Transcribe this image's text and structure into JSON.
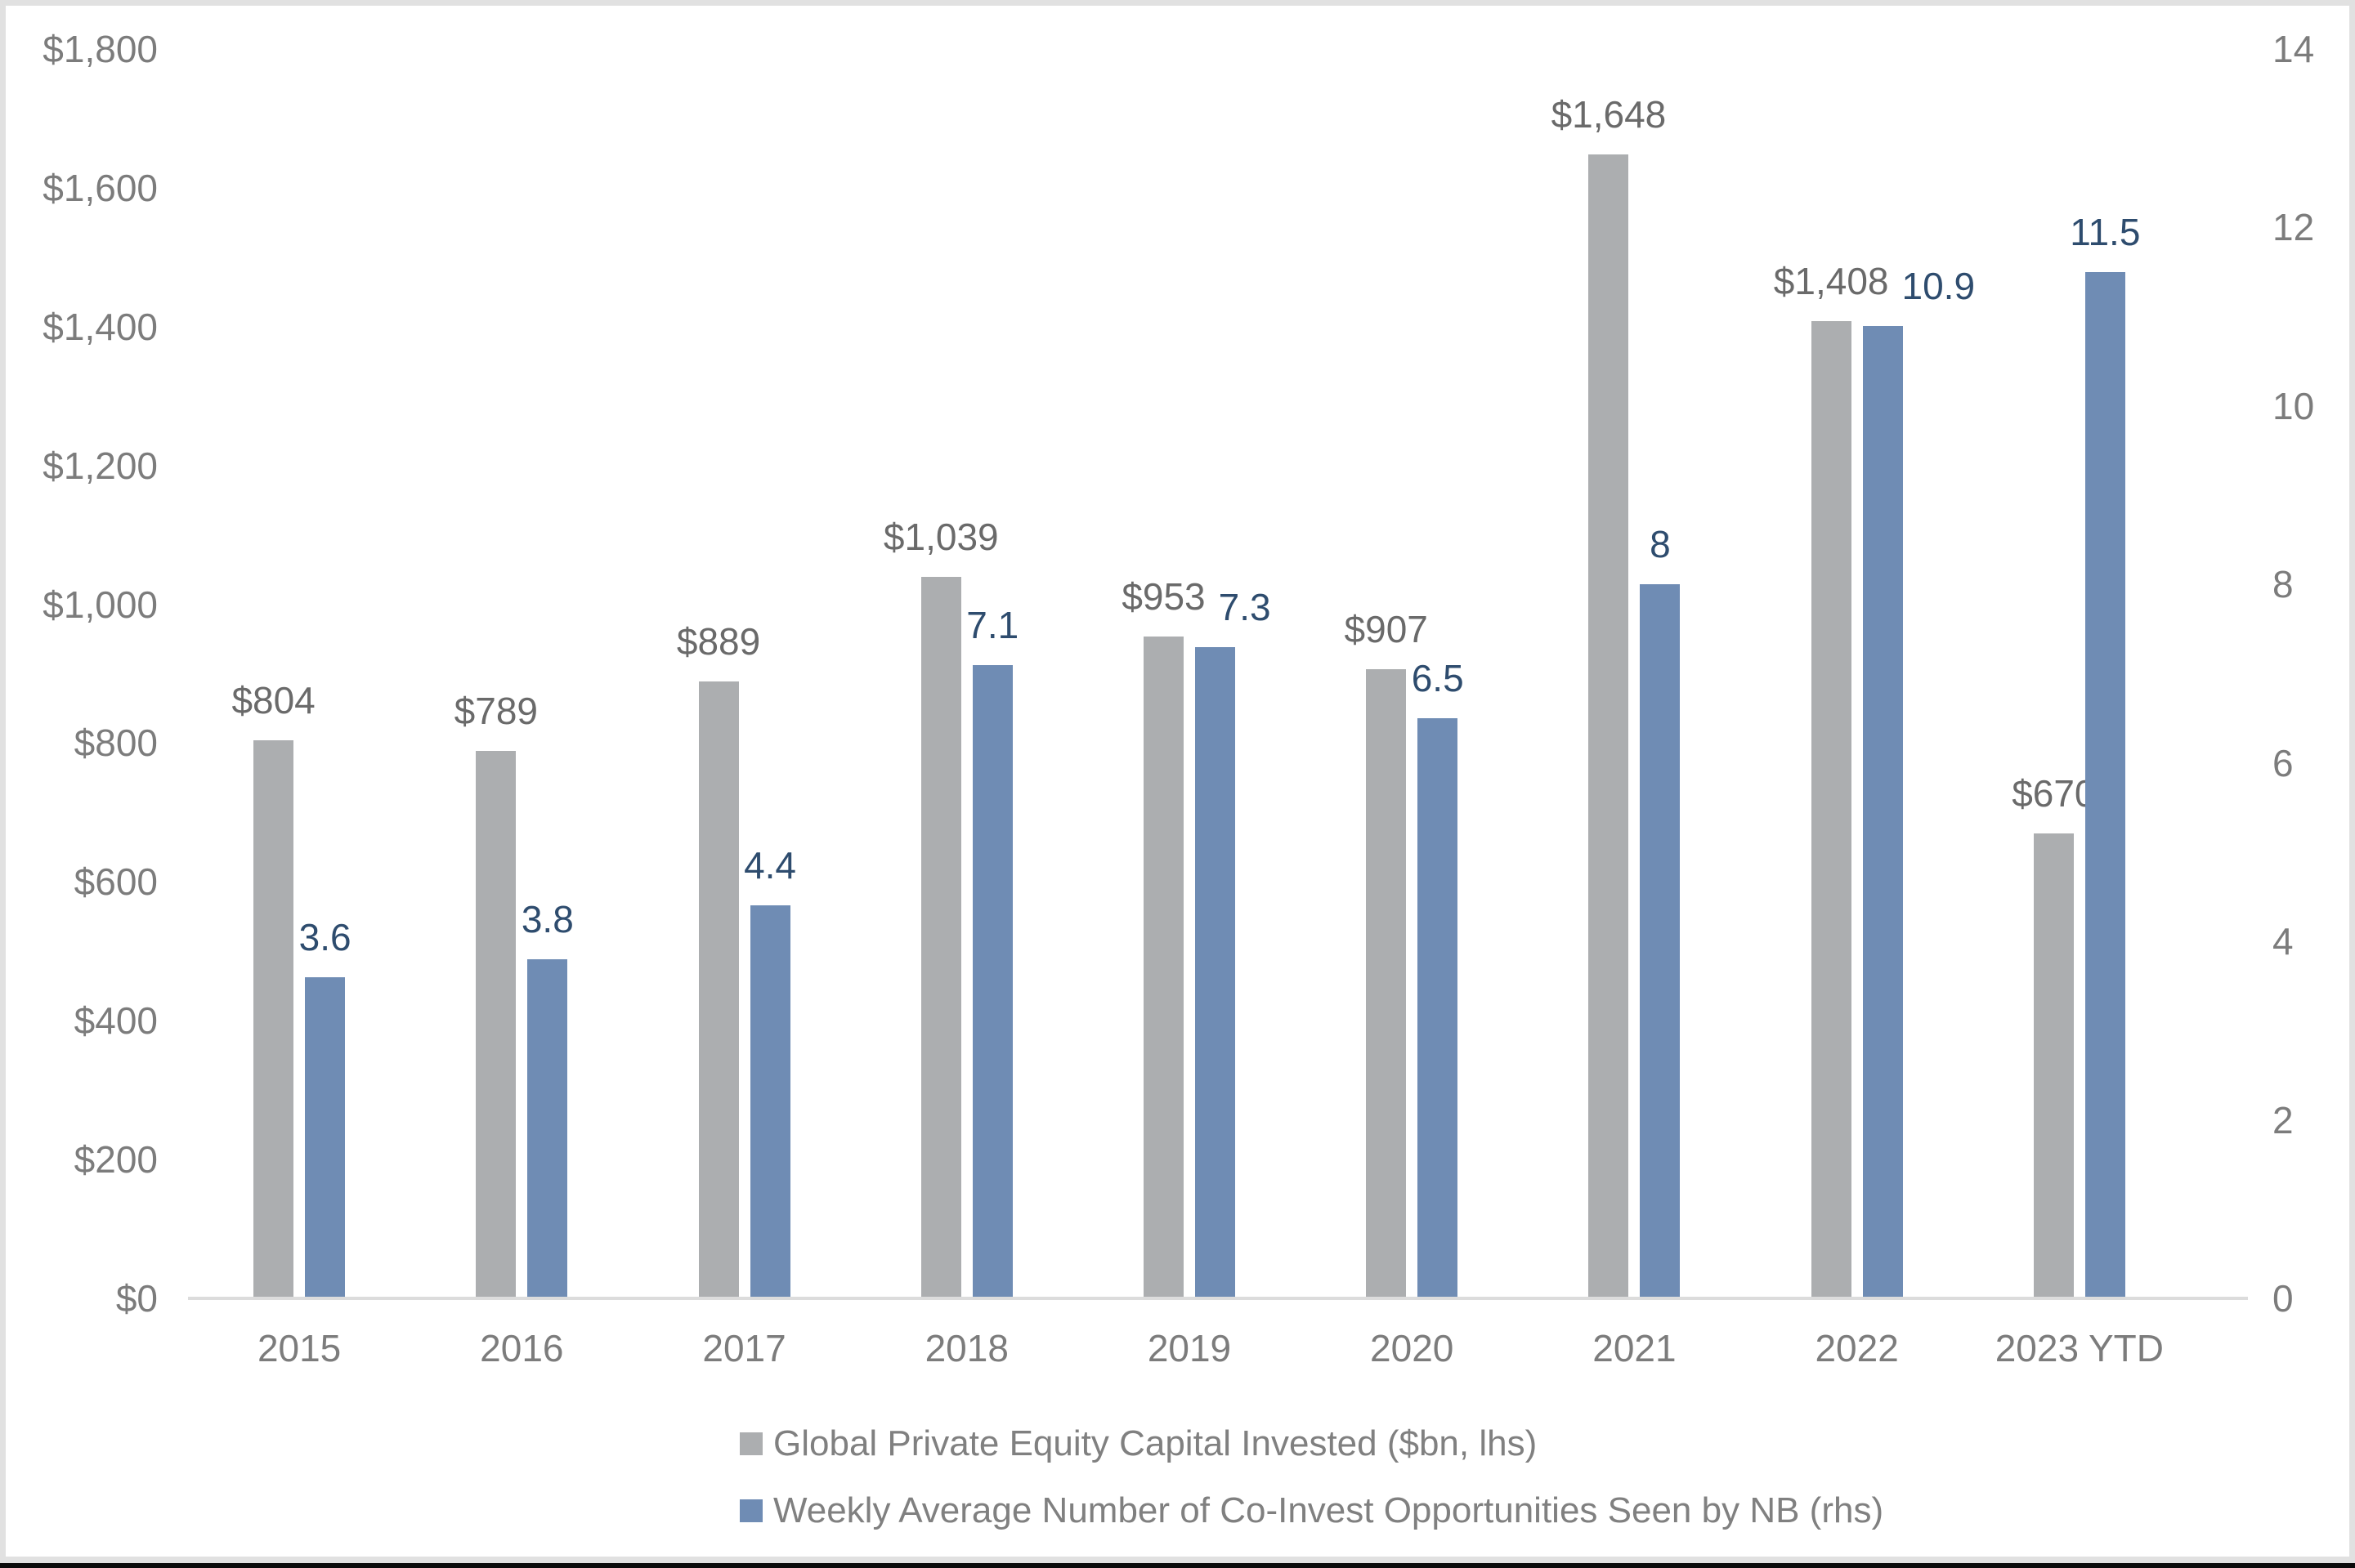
{
  "chart_data": {
    "type": "bar",
    "title": "",
    "categories": [
      "2015",
      "2016",
      "2017",
      "2018",
      "2019",
      "2020",
      "2021",
      "2022",
      "2023 YTD"
    ],
    "series": [
      {
        "name": "Global Private Equity Capital Invested ($bn, lhs)",
        "axis": "left",
        "color": "#ACAEB0",
        "label_color": "#6A6A6A",
        "values": [
          804,
          789,
          889,
          1039,
          953,
          907,
          1648,
          1408,
          670
        ],
        "labels": [
          "$804",
          "$789",
          "$889",
          "$1,039",
          "$953",
          "$907",
          "$1,648",
          "$1,408",
          "$670"
        ]
      },
      {
        "name": "Weekly Average Number of Co-Invest Opportunities Seen by NB (rhs)",
        "axis": "right",
        "color": "#6F8CB4",
        "label_color": "#2E4C6E",
        "values": [
          3.6,
          3.8,
          4.4,
          7.1,
          7.3,
          6.5,
          8,
          10.9,
          11.5
        ],
        "labels": [
          "3.6",
          "3.8",
          "4.4",
          "7.1",
          "7.3",
          "6.5",
          "8",
          "10.9",
          "11.5"
        ]
      }
    ],
    "left_axis": {
      "min": 0,
      "max": 1800,
      "step": 200,
      "tick_labels": [
        "$0",
        "$200",
        "$400",
        "$600",
        "$800",
        "$1,000",
        "$1,200",
        "$1,400",
        "$1,600",
        "$1,800"
      ]
    },
    "right_axis": {
      "min": 0,
      "max": 14,
      "step": 2,
      "tick_labels": [
        "0",
        "2",
        "4",
        "6",
        "8",
        "10",
        "12",
        "14"
      ]
    },
    "grid": false,
    "legend_position": "bottom",
    "background_color": "#FFFFFF"
  },
  "frame": {
    "border_color": "#E1E1E1",
    "bottom_edge_color": "#0B0B0B",
    "axis_line_color": "#DCDCDC",
    "axis_text_color": "#7C7C7C",
    "legend_text_color": "#808080"
  }
}
